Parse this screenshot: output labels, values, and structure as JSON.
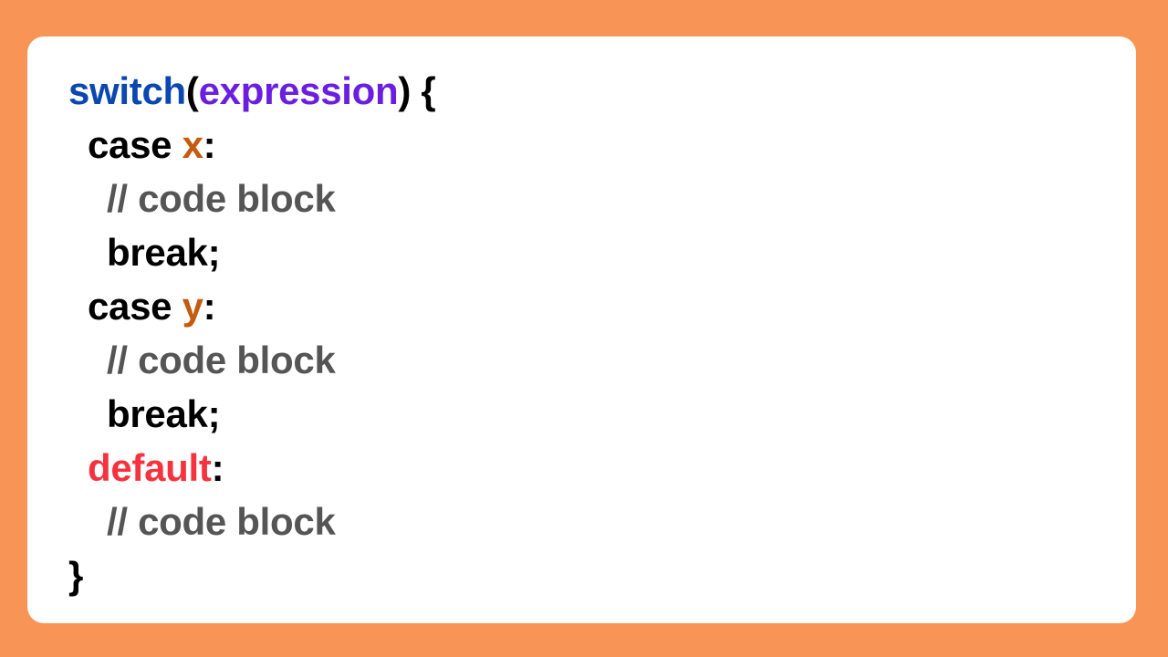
{
  "colors": {
    "background": "#F89455",
    "card": "#FFFFFF",
    "switch_keyword": "#0B47B0",
    "expression": "#6A1FE0",
    "case_value": "#C55A11",
    "comment": "#555555",
    "default_keyword": "#F5333F",
    "plain": "#000000"
  },
  "code": {
    "line1": {
      "keyword": "switch",
      "open_paren": "(",
      "expression": "expression",
      "close": ") {"
    },
    "case1": {
      "keyword": "case ",
      "value": "x",
      "colon": ":"
    },
    "comment1": "// code block",
    "break1": "break;",
    "case2": {
      "keyword": "case ",
      "value": "y",
      "colon": ":"
    },
    "comment2": "// code block",
    "break2": "break;",
    "default": {
      "keyword": "default",
      "colon": ":"
    },
    "comment3": "// code block",
    "closing_brace": "}"
  }
}
